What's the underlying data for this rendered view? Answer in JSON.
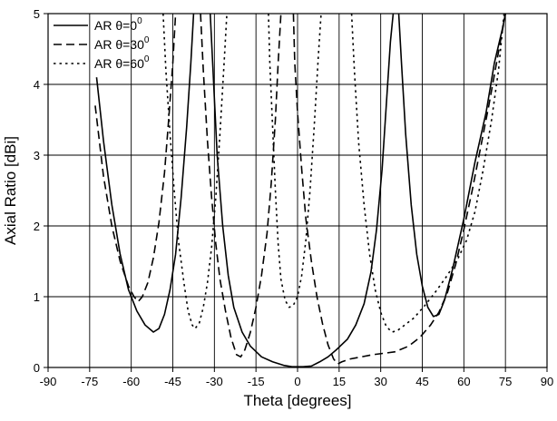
{
  "chart_data": {
    "type": "line",
    "title": "",
    "xlabel": "Theta [degrees]",
    "ylabel": "Axial Ratio [dBi]",
    "xlim": [
      -90,
      90
    ],
    "ylim": [
      0,
      5
    ],
    "x_ticks": [
      -90,
      -75,
      -60,
      -45,
      -30,
      -15,
      0,
      15,
      30,
      45,
      60,
      75,
      90
    ],
    "y_ticks": [
      0,
      1,
      2,
      3,
      4,
      5
    ],
    "grid": true,
    "legend_position": "top-left",
    "series": [
      {
        "name": "AR θ=0°",
        "label_main": "AR θ=0",
        "label_sup": "0",
        "dash": "solid",
        "color": "#000000",
        "points": [
          [
            -72.5,
            4.1
          ],
          [
            -70,
            3.2
          ],
          [
            -67,
            2.3
          ],
          [
            -64,
            1.6
          ],
          [
            -61,
            1.1
          ],
          [
            -58,
            0.8
          ],
          [
            -55,
            0.6
          ],
          [
            -52,
            0.5
          ],
          [
            -50,
            0.55
          ],
          [
            -48,
            0.75
          ],
          [
            -46,
            1.1
          ],
          [
            -44,
            1.6
          ],
          [
            -42,
            2.4
          ],
          [
            -40,
            3.4
          ],
          [
            -38.5,
            4.3
          ],
          [
            -37.5,
            5.0
          ],
          null,
          [
            -31.5,
            5.0
          ],
          [
            -30.5,
            4.2
          ],
          [
            -29,
            3.0
          ],
          [
            -27,
            2.0
          ],
          [
            -25,
            1.3
          ],
          [
            -23,
            0.85
          ],
          [
            -20,
            0.5
          ],
          [
            -17,
            0.3
          ],
          [
            -13,
            0.15
          ],
          [
            -9,
            0.08
          ],
          [
            -5,
            0.03
          ],
          [
            -2,
            0.01
          ],
          [
            2,
            0.01
          ],
          [
            5,
            0.02
          ],
          [
            8,
            0.08
          ],
          [
            11,
            0.15
          ],
          [
            14,
            0.25
          ],
          [
            18,
            0.4
          ],
          [
            21,
            0.6
          ],
          [
            24,
            0.9
          ],
          [
            26.5,
            1.35
          ],
          [
            28.5,
            1.95
          ],
          [
            30.5,
            2.8
          ],
          [
            32,
            3.7
          ],
          [
            33.5,
            4.6
          ],
          [
            34.5,
            5.0
          ],
          null,
          [
            36.5,
            5.0
          ],
          [
            37.5,
            4.3
          ],
          [
            39,
            3.3
          ],
          [
            41,
            2.3
          ],
          [
            43,
            1.6
          ],
          [
            45,
            1.15
          ],
          [
            47,
            0.85
          ],
          [
            49,
            0.72
          ],
          [
            51,
            0.75
          ],
          [
            53,
            0.95
          ],
          [
            56,
            1.4
          ],
          [
            60,
            2.1
          ],
          [
            64,
            2.9
          ],
          [
            68,
            3.6
          ],
          [
            71,
            4.3
          ],
          [
            74,
            4.8
          ],
          [
            75,
            5.0
          ]
        ]
      },
      {
        "name": "AR θ=30°",
        "label_main": "AR θ=30",
        "label_sup": "0",
        "dash": "dashed",
        "color": "#000000",
        "points": [
          [
            -73,
            3.7
          ],
          [
            -70,
            2.7
          ],
          [
            -67,
            2.0
          ],
          [
            -64,
            1.5
          ],
          [
            -61,
            1.15
          ],
          [
            -59,
            1.0
          ],
          [
            -57.5,
            0.93
          ],
          [
            -56,
            1.0
          ],
          [
            -54,
            1.2
          ],
          [
            -52,
            1.55
          ],
          [
            -50,
            2.05
          ],
          [
            -48,
            2.75
          ],
          [
            -46.5,
            3.5
          ],
          [
            -45,
            4.3
          ],
          [
            -44,
            5.0
          ],
          null,
          [
            -35,
            5.0
          ],
          [
            -34,
            4.2
          ],
          [
            -32.5,
            3.2
          ],
          [
            -31,
            2.4
          ],
          [
            -29.5,
            1.75
          ],
          [
            -28,
            1.25
          ],
          [
            -26,
            0.8
          ],
          [
            -24,
            0.42
          ],
          [
            -22,
            0.18
          ],
          [
            -20.5,
            0.15
          ],
          [
            -19,
            0.25
          ],
          [
            -17,
            0.5
          ],
          [
            -15,
            0.85
          ],
          [
            -13,
            1.3
          ],
          [
            -11,
            1.9
          ],
          [
            -9.5,
            2.6
          ],
          [
            -8,
            3.5
          ],
          [
            -7,
            4.3
          ],
          [
            -6,
            5.0
          ],
          null,
          [
            -1.5,
            5.0
          ],
          [
            -1,
            4.3
          ],
          [
            0,
            3.6
          ],
          [
            1.5,
            2.8
          ],
          [
            3,
            2.1
          ],
          [
            5,
            1.5
          ],
          [
            7,
            1.0
          ],
          [
            9,
            0.62
          ],
          [
            11,
            0.32
          ],
          [
            13,
            0.12
          ],
          [
            14.5,
            0.05
          ],
          [
            16,
            0.08
          ],
          [
            19,
            0.12
          ],
          [
            23,
            0.15
          ],
          [
            27,
            0.18
          ],
          [
            31,
            0.2
          ],
          [
            35,
            0.22
          ],
          [
            40,
            0.3
          ],
          [
            44,
            0.42
          ],
          [
            48,
            0.6
          ],
          [
            51,
            0.78
          ],
          [
            54,
            1.05
          ],
          [
            57,
            1.45
          ],
          [
            60,
            1.95
          ],
          [
            63,
            2.5
          ],
          [
            66,
            3.1
          ],
          [
            69,
            3.7
          ],
          [
            72,
            4.35
          ],
          [
            75,
            5.0
          ]
        ]
      },
      {
        "name": "AR θ=60°",
        "label_main": "AR θ=60",
        "label_sup": "0",
        "dash": "dotted",
        "color": "#000000",
        "points": [
          [
            -48.5,
            5.0
          ],
          [
            -47.5,
            4.2
          ],
          [
            -46,
            3.3
          ],
          [
            -44.5,
            2.5
          ],
          [
            -43,
            1.8
          ],
          [
            -41,
            1.2
          ],
          [
            -39.5,
            0.8
          ],
          [
            -38,
            0.6
          ],
          [
            -37,
            0.55
          ],
          [
            -35.5,
            0.62
          ],
          [
            -34,
            0.85
          ],
          [
            -32.5,
            1.2
          ],
          [
            -31,
            1.7
          ],
          [
            -29.5,
            2.4
          ],
          [
            -28,
            3.3
          ],
          [
            -26.5,
            4.3
          ],
          [
            -25.5,
            5.0
          ],
          null,
          [
            -10.5,
            5.0
          ],
          [
            -10,
            4.3
          ],
          [
            -9,
            3.4
          ],
          [
            -8,
            2.5
          ],
          [
            -7,
            1.75
          ],
          [
            -6,
            1.25
          ],
          [
            -4.5,
            0.95
          ],
          [
            -3,
            0.85
          ],
          [
            -1.5,
            0.88
          ],
          [
            0,
            1.0
          ],
          [
            1.5,
            1.3
          ],
          [
            3,
            1.8
          ],
          [
            4.5,
            2.5
          ],
          [
            6,
            3.4
          ],
          [
            7.5,
            4.4
          ],
          [
            8.5,
            5.0
          ],
          null,
          [
            19.5,
            5.0
          ],
          [
            20.5,
            4.2
          ],
          [
            22,
            3.2
          ],
          [
            24,
            2.3
          ],
          [
            26,
            1.6
          ],
          [
            28,
            1.1
          ],
          [
            30,
            0.78
          ],
          [
            32,
            0.58
          ],
          [
            34,
            0.5
          ],
          [
            36,
            0.52
          ],
          [
            38,
            0.58
          ],
          [
            42,
            0.7
          ],
          [
            46,
            0.88
          ],
          [
            50,
            1.08
          ],
          [
            54,
            1.3
          ],
          [
            58,
            1.55
          ],
          [
            61,
            1.8
          ],
          [
            64,
            2.2
          ],
          [
            67,
            2.8
          ],
          [
            70,
            3.5
          ],
          [
            72.5,
            4.2
          ],
          [
            74.5,
            5.0
          ]
        ]
      }
    ]
  }
}
